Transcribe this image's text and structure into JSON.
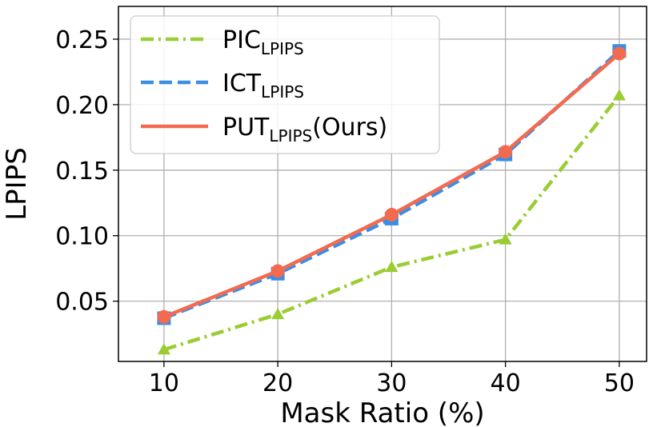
{
  "chart_data": {
    "type": "line",
    "xlabel": "Mask Ratio (%)",
    "ylabel": "LPIPS",
    "x": [
      10,
      20,
      30,
      40,
      50
    ],
    "x_ticks": [
      "10",
      "20",
      "30",
      "40",
      "50"
    ],
    "y_ticks": [
      "0.05",
      "0.10",
      "0.15",
      "0.20",
      "0.25"
    ],
    "y_tick_values": [
      0.05,
      0.1,
      0.15,
      0.2,
      0.25
    ],
    "xlim": [
      6,
      52.4
    ],
    "ylim": [
      0.004,
      0.275
    ],
    "grid": true,
    "legend_position": "top-left",
    "series": [
      {
        "name": "PIC",
        "name_sub": "LPIPS",
        "name_suffix": "",
        "values": [
          0.013,
          0.04,
          0.076,
          0.097,
          0.207
        ],
        "color": "#9acd32",
        "line_style": "dashdot",
        "marker": "triangle"
      },
      {
        "name": "ICT",
        "name_sub": "LPIPS",
        "name_suffix": "",
        "values": [
          0.037,
          0.071,
          0.113,
          0.162,
          0.241
        ],
        "color": "#3b8ee6",
        "line_style": "dashed",
        "marker": "square"
      },
      {
        "name": "PUT",
        "name_sub": "LPIPS",
        "name_suffix": "(Ours)",
        "values": [
          0.038,
          0.073,
          0.116,
          0.164,
          0.239
        ],
        "color": "#f26b50",
        "line_style": "solid",
        "marker": "circle"
      }
    ]
  }
}
